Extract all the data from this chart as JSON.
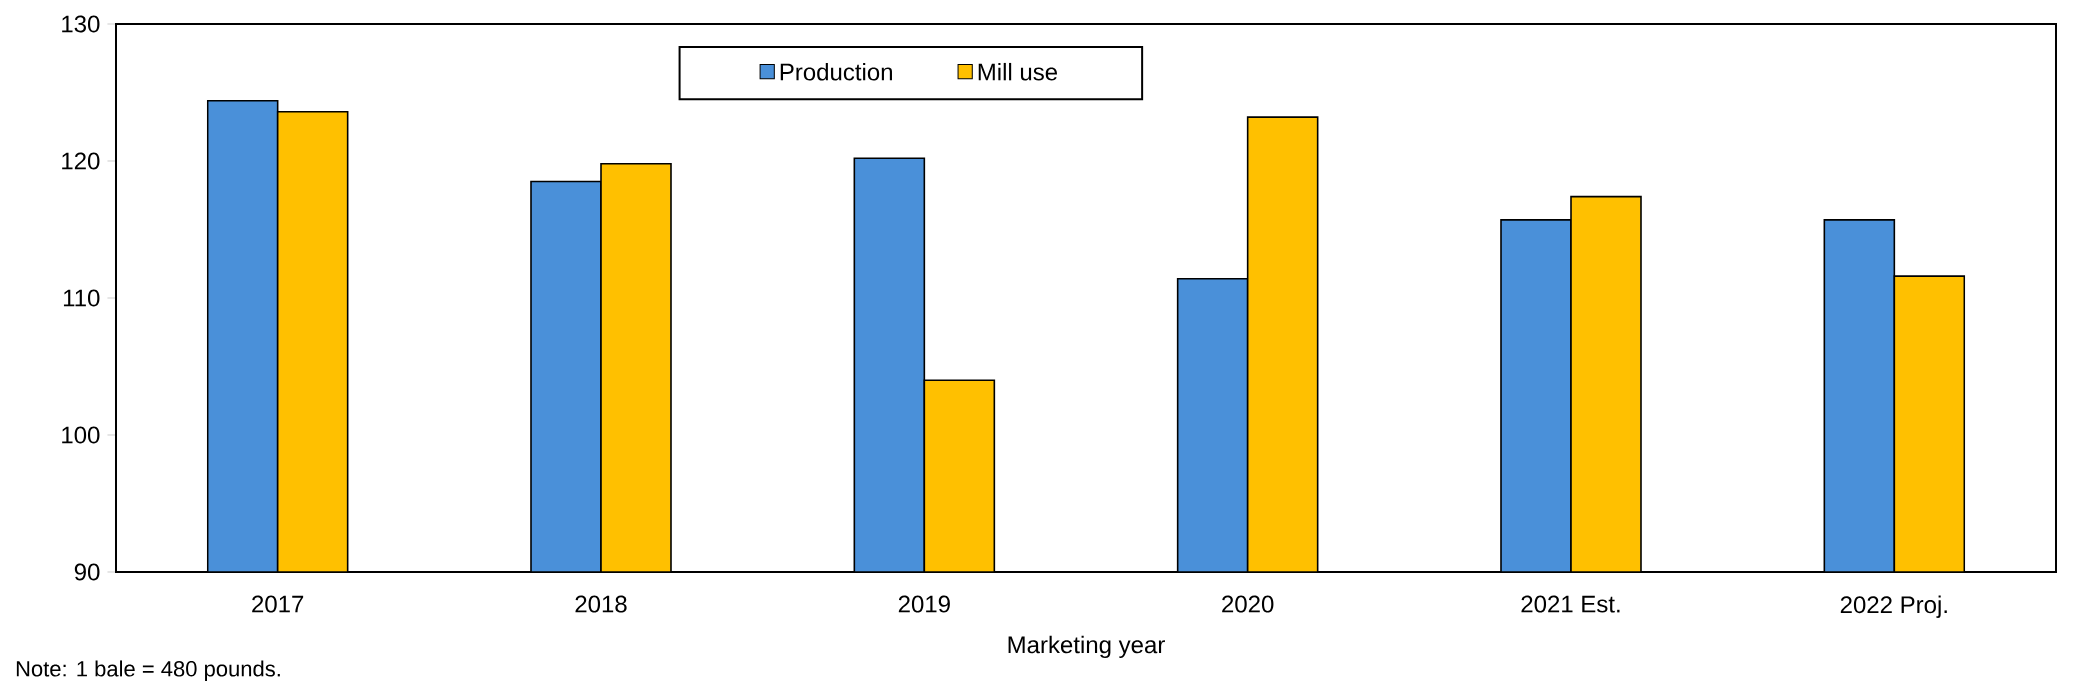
{
  "chart_data": {
    "type": "bar",
    "xlabel": "Marketing year",
    "categories": [
      "2017",
      "2018",
      "2019",
      "2020",
      "2021 Est.",
      "2022 Proj."
    ],
    "series": [
      {
        "name": "Production",
        "color": "#4a90d9",
        "values": [
          124.4,
          118.5,
          120.2,
          111.4,
          115.7,
          115.7
        ]
      },
      {
        "name": "Mill use",
        "color": "#ffc000",
        "values": [
          123.6,
          119.8,
          104.0,
          123.2,
          117.4,
          111.6
        ]
      }
    ],
    "ylim": [
      90,
      130
    ],
    "yticks": [
      90,
      100,
      110,
      120,
      130
    ],
    "grid": false,
    "legend": "top",
    "annotations": [
      "Note: 1 bale = 480 pounds."
    ]
  }
}
